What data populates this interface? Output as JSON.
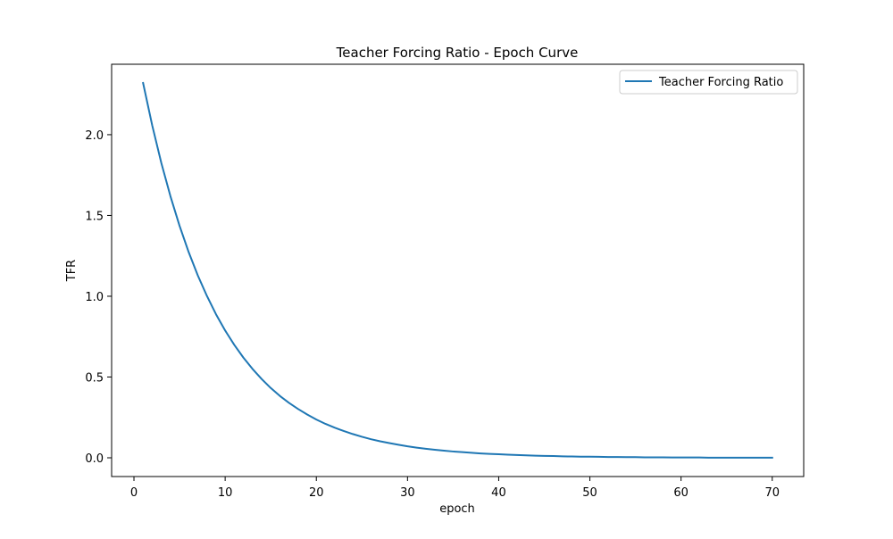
{
  "chart_data": {
    "type": "line",
    "title": "Teacher Forcing Ratio - Epoch Curve",
    "xlabel": "epoch",
    "ylabel": "TFR",
    "xlim": [
      -2.45,
      73.45
    ],
    "ylim": [
      -0.116,
      2.436
    ],
    "xticks": [
      0,
      10,
      20,
      30,
      40,
      50,
      60,
      70
    ],
    "yticks": [
      0.0,
      0.5,
      1.0,
      1.5,
      2.0
    ],
    "xtick_labels": [
      "0",
      "10",
      "20",
      "30",
      "40",
      "50",
      "60",
      "70"
    ],
    "ytick_labels": [
      "0.0",
      "0.5",
      "1.0",
      "1.5",
      "2.0"
    ],
    "grid": false,
    "legend_position": "upper right",
    "legend_entries": [
      "Teacher Forcing Ratio"
    ],
    "series": [
      {
        "name": "Teacher Forcing Ratio",
        "color": "#1f77b4",
        "x": [
          1,
          2,
          3,
          4,
          5,
          6,
          7,
          8,
          9,
          10,
          11,
          12,
          13,
          14,
          15,
          16,
          17,
          18,
          19,
          20,
          21,
          22,
          23,
          24,
          25,
          26,
          27,
          28,
          29,
          30,
          31,
          32,
          33,
          34,
          35,
          36,
          37,
          38,
          39,
          40,
          41,
          42,
          43,
          44,
          45,
          46,
          47,
          48,
          49,
          50,
          51,
          52,
          53,
          54,
          55,
          56,
          57,
          58,
          59,
          60,
          61,
          62,
          63,
          64,
          65,
          66,
          67,
          68,
          69,
          70
        ],
        "values": [
          2.32,
          2.058,
          1.825,
          1.619,
          1.436,
          1.273,
          1.129,
          1.002,
          0.888,
          0.788,
          0.699,
          0.62,
          0.55,
          0.488,
          0.432,
          0.383,
          0.34,
          0.302,
          0.268,
          0.237,
          0.21,
          0.187,
          0.166,
          0.147,
          0.13,
          0.115,
          0.102,
          0.091,
          0.081,
          0.071,
          0.063,
          0.056,
          0.05,
          0.044,
          0.039,
          0.035,
          0.031,
          0.027,
          0.024,
          0.022,
          0.019,
          0.017,
          0.015,
          0.013,
          0.012,
          0.011,
          0.009,
          0.008,
          0.007,
          0.007,
          0.006,
          0.005,
          0.005,
          0.004,
          0.004,
          0.003,
          0.003,
          0.003,
          0.002,
          0.002,
          0.002,
          0.002,
          0.001,
          0.001,
          0.001,
          0.001,
          0.001,
          0.001,
          0.001,
          0.001
        ]
      }
    ]
  }
}
